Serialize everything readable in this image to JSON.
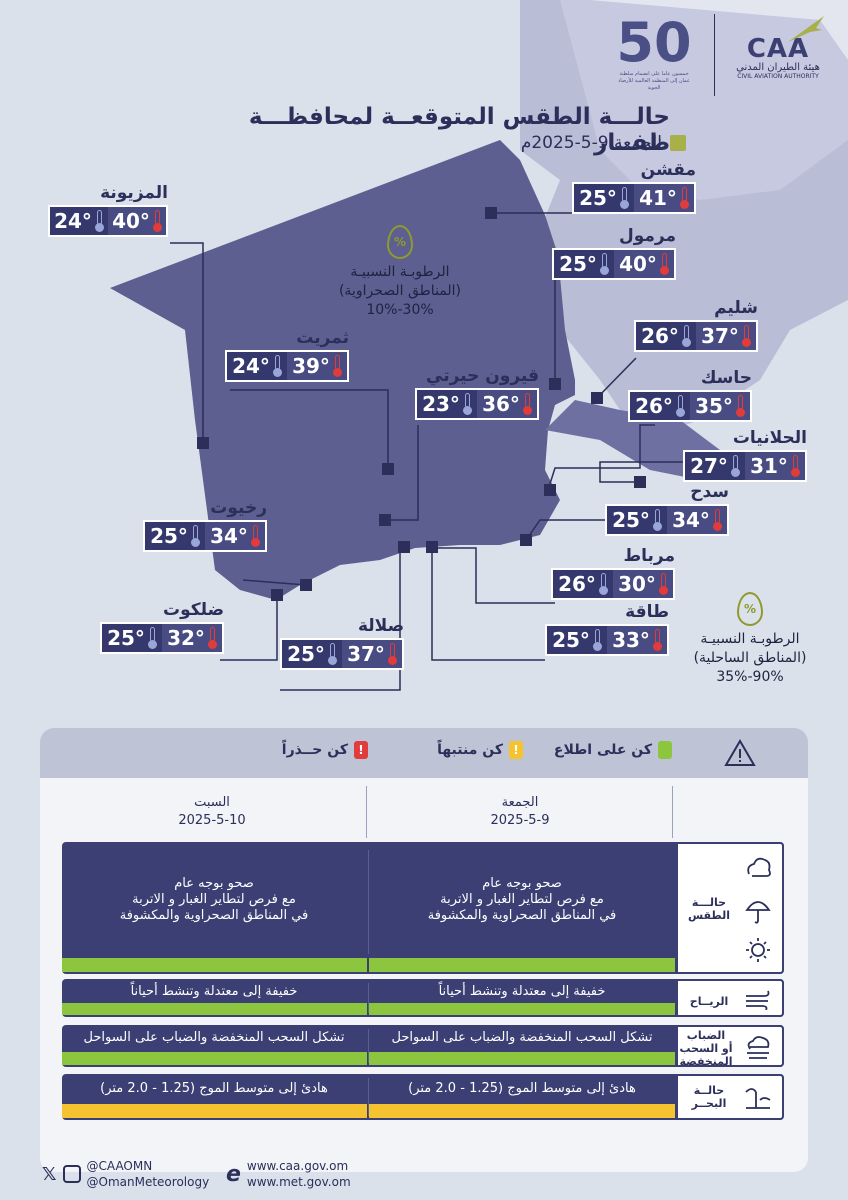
{
  "header": {
    "title": "حالـــة الطقس المتوقعــة لمحافظـــة ظفــار",
    "date": "الجمعة 9-5-2025م",
    "caa_logo": "CAA",
    "caa_name_ar": "هيئة الطيران المدني",
    "caa_name_en": "CIVIL AVIATION AUTHORITY",
    "anniversary": "50",
    "anniversary_caption": "خمسون عاما على انضمام سلطنة عمان إلى المنظمة العالمية للأرصاد الجوية"
  },
  "cities": [
    {
      "name": "المزيونة",
      "high": "40°",
      "low": "24°"
    },
    {
      "name": "مقشن",
      "high": "41°",
      "low": "25°"
    },
    {
      "name": "مرمول",
      "high": "40°",
      "low": "25°"
    },
    {
      "name": "شليم",
      "high": "37°",
      "low": "26°"
    },
    {
      "name": "ثمريت",
      "high": "39°",
      "low": "24°"
    },
    {
      "name": "قيرون حيرتي",
      "high": "36°",
      "low": "23°"
    },
    {
      "name": "حاسك",
      "high": "35°",
      "low": "26°"
    },
    {
      "name": "الحلانيات",
      "high": "31°",
      "low": "27°"
    },
    {
      "name": "سدح",
      "high": "34°",
      "low": "25°"
    },
    {
      "name": "رخيوت",
      "high": "34°",
      "low": "25°"
    },
    {
      "name": "مرباط",
      "high": "30°",
      "low": "26°"
    },
    {
      "name": "ضلكوت",
      "high": "32°",
      "low": "25°"
    },
    {
      "name": "طاقة",
      "high": "33°",
      "low": "25°"
    },
    {
      "name": "صلالة",
      "high": "37°",
      "low": "25°"
    }
  ],
  "humidity_desert": {
    "label": "الرطوبـة النسبيـة",
    "region": "(المناطق الصحراوية)",
    "range": "30%-10%"
  },
  "humidity_coastal": {
    "label": "الرطوبـة النسبيـة",
    "region": "(المناطق الساحلية)",
    "range": "90%-35%"
  },
  "legend": {
    "aware": "كن على اطلاع",
    "attentive": "كن منتبهاً",
    "cautious": "كن حــذراً",
    "attentive_mark": "!",
    "cautious_mark": "!"
  },
  "colors": {
    "aware": "#8cc63f",
    "attentive": "#f5c330",
    "cautious": "#e23b3b",
    "map": "#5c5f8f",
    "navy": "#3b3f73"
  },
  "days": [
    {
      "name": "الجمعة",
      "date": "2025-5-9"
    },
    {
      "name": "السبت",
      "date": "2025-5-10"
    }
  ],
  "rows": {
    "weather": {
      "label": "حالـــة الطقس",
      "day1": [
        "صحو بوجه عام",
        "مع فرص لتطاير الغبار و الاتربة",
        "في المناطق الصحراوية والمكشوفة"
      ],
      "day2": [
        "صحو بوجه عام",
        "مع فرص لتطاير الغبار و الاتربة",
        "في المناطق الصحراوية والمكشوفة"
      ]
    },
    "wind": {
      "label": "الريــاح",
      "day1": "خفيفة إلى معتدلة وتنشط أحياناً",
      "day2": "خفيفة إلى معتدلة وتنشط أحياناً"
    },
    "fog": {
      "label1": "الضباب",
      "label2": "أو السحب",
      "label3": "المنخفضة",
      "day1": "تشكل السحب المنخفضة والضباب على السواحل",
      "day2": "تشكل السحب المنخفضة والضباب على السواحل"
    },
    "sea": {
      "label1": "حالــة",
      "label2": "البحــر",
      "day1": "هادئ إلى متوسط الموج (1.25 - 2.0 متر)",
      "day2": "هادئ إلى متوسط الموج (1.25 - 2.0 متر)"
    }
  },
  "footer": {
    "handle1": "@CAAOMN",
    "handle2": "@OmanMeteorology",
    "site1": "www.caa.gov.om",
    "site2": "www.met.gov.om"
  }
}
